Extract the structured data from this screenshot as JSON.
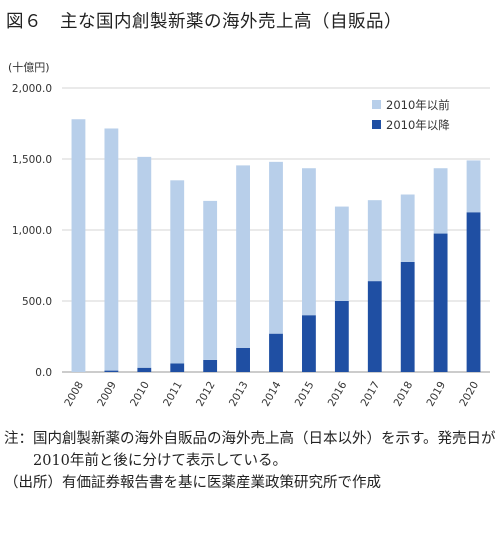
{
  "figure": {
    "title": "図６　主な国内創製新薬の海外売上高（自販品）"
  },
  "chart_data": {
    "type": "bar",
    "stacked": true,
    "unit_label": "(十億円)",
    "categories": [
      "2008",
      "2009",
      "2010",
      "2011",
      "2012",
      "2013",
      "2014",
      "2015",
      "2016",
      "2017",
      "2018",
      "2019",
      "2020"
    ],
    "series": [
      {
        "name": "2010年以前",
        "color": "#b8cfea",
        "values": [
          1780,
          1705,
          1485,
          1290,
          1120,
          1285,
          1210,
          1035,
          665,
          570,
          475,
          460,
          365
        ]
      },
      {
        "name": "2010年以降",
        "color": "#1f4fa3",
        "values": [
          0,
          10,
          30,
          60,
          85,
          170,
          270,
          400,
          500,
          640,
          775,
          975,
          1125
        ]
      }
    ],
    "ylim": [
      0,
      2000
    ],
    "yticks": [
      "0.0",
      "500.0",
      "1,000.0",
      "1,500.0",
      "2,000.0"
    ],
    "ytick_values": [
      0,
      500,
      1000,
      1500,
      2000
    ],
    "grid": true,
    "legend_position": "top-right"
  },
  "notes": {
    "note1_prefix": "注：",
    "note1_text": "国内創製新薬の海外自販品の海外売上高（日本以外）を示す。発売日が2010年前と後に分けて表示している。",
    "source_prefix": "（出所）",
    "source_text": "有価証券報告書を基に医薬産業政策研究所で作成"
  }
}
